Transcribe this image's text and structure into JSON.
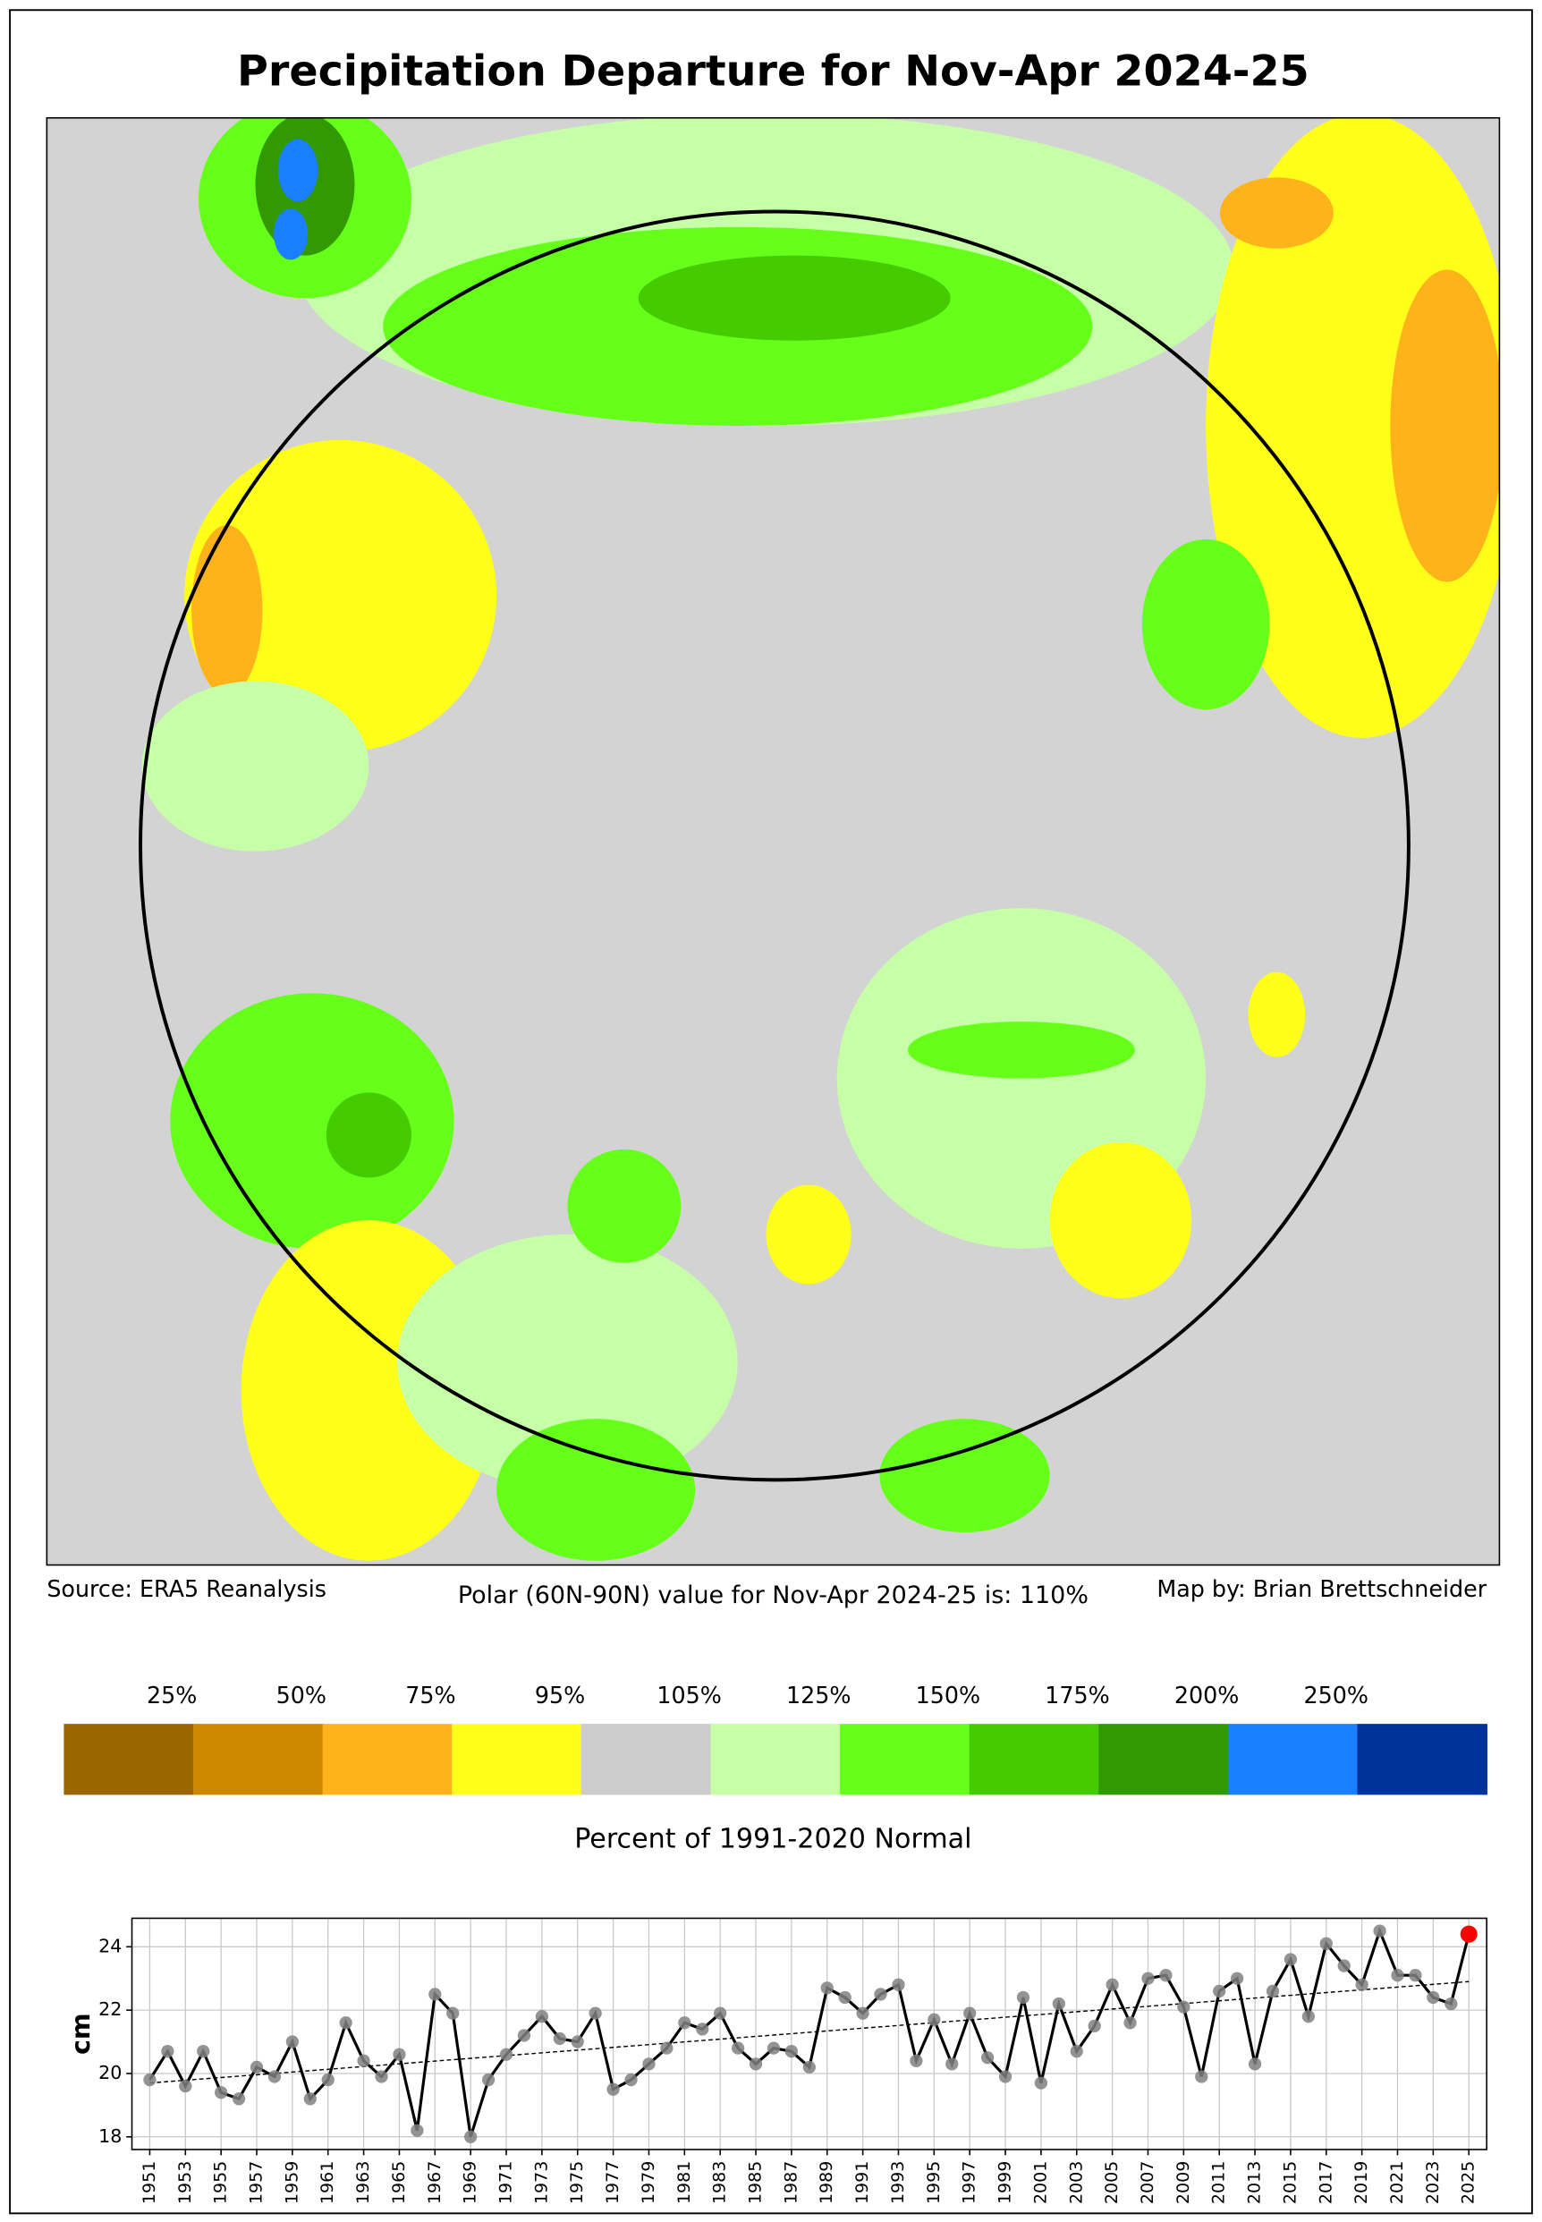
{
  "title": "Precipitation Departure for Nov-Apr 2024-25",
  "source": "Source: ERA5 Reanalysis",
  "note": "Polar (60N-90N) value for Nov-Apr 2024-25 is: 110%",
  "credit": "Map by: Brian Brettschneider",
  "legend": {
    "labels": [
      "25%",
      "50%",
      "75%",
      "95%",
      "105%",
      "125%",
      "150%",
      "175%",
      "200%",
      "250%"
    ],
    "colors": [
      "#996600",
      "#cc8800",
      "#ffb31a",
      "#ffff1a",
      "#cccccc",
      "#c6ffa8",
      "#66ff1a",
      "#44cc00",
      "#339900",
      "#1a80ff",
      "#003399"
    ],
    "title": "Percent of 1991-2020 Normal"
  },
  "chart_data": {
    "type": "line",
    "ylabel": "cm",
    "x": [
      1951,
      1952,
      1953,
      1954,
      1955,
      1956,
      1957,
      1958,
      1959,
      1960,
      1961,
      1962,
      1963,
      1964,
      1965,
      1966,
      1967,
      1968,
      1969,
      1970,
      1971,
      1972,
      1973,
      1974,
      1975,
      1976,
      1977,
      1978,
      1979,
      1980,
      1981,
      1982,
      1983,
      1984,
      1985,
      1986,
      1987,
      1988,
      1989,
      1990,
      1991,
      1992,
      1993,
      1994,
      1995,
      1996,
      1997,
      1998,
      1999,
      2000,
      2001,
      2002,
      2003,
      2004,
      2005,
      2006,
      2007,
      2008,
      2009,
      2010,
      2011,
      2012,
      2013,
      2014,
      2015,
      2016,
      2017,
      2018,
      2019,
      2020,
      2021,
      2022,
      2023,
      2024,
      2025
    ],
    "values": [
      19.8,
      20.7,
      19.6,
      20.7,
      19.4,
      19.2,
      20.2,
      19.9,
      21.0,
      19.2,
      19.8,
      21.6,
      20.4,
      19.9,
      20.6,
      18.2,
      22.5,
      21.9,
      18.0,
      19.8,
      20.6,
      21.2,
      21.8,
      21.1,
      21.0,
      21.9,
      19.5,
      19.8,
      20.3,
      20.8,
      21.6,
      21.4,
      21.9,
      20.8,
      20.3,
      20.8,
      20.7,
      20.2,
      22.7,
      22.4,
      21.9,
      22.5,
      22.8,
      20.4,
      21.7,
      20.3,
      21.9,
      20.5,
      19.9,
      22.4,
      19.7,
      22.2,
      20.7,
      21.5,
      22.8,
      21.6,
      23.0,
      23.1,
      22.1,
      19.9,
      22.6,
      23.0,
      20.3,
      22.6,
      23.6,
      21.8,
      24.1,
      23.4,
      22.8,
      24.5,
      23.1,
      23.1,
      22.4,
      22.2,
      24.4
    ],
    "color": "#000000",
    "marker_color": "#808080",
    "highlight_color": "#ff0000",
    "trend": {
      "x": [
        1951,
        2025
      ],
      "values": [
        19.7,
        22.9
      ]
    },
    "xlim": [
      1950,
      2026
    ],
    "ylim": [
      17.6,
      24.9
    ],
    "xticks": [
      1951,
      1953,
      1955,
      1957,
      1959,
      1961,
      1963,
      1965,
      1967,
      1969,
      1971,
      1973,
      1975,
      1977,
      1979,
      1981,
      1983,
      1985,
      1987,
      1989,
      1991,
      1993,
      1995,
      1997,
      1999,
      2001,
      2003,
      2005,
      2007,
      2009,
      2011,
      2013,
      2015,
      2017,
      2019,
      2021,
      2023,
      2025
    ],
    "yticks": [
      18,
      20,
      22,
      24
    ],
    "grid": true
  }
}
